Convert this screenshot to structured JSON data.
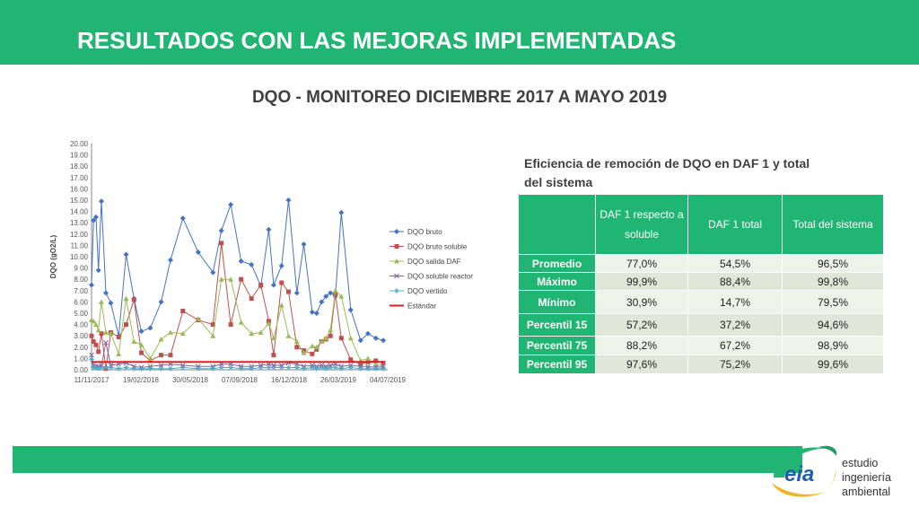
{
  "header": {
    "title": "RESULTADOS CON LAS MEJORAS IMPLEMENTADAS"
  },
  "subtitle": "DQO - MONITOREO DICIEMBRE 2017 A MAYO 2019",
  "colors": {
    "green": "#21b573",
    "dqo_bruto": "#4472c4",
    "dqo_bruto_soluble": "#c0504d",
    "dqo_salida_daf": "#9bbb59",
    "dqo_soluble_reactor": "#8064a2",
    "dqo_vertido": "#4bacc6",
    "estandar": "#e02020"
  },
  "chart_data": {
    "type": "line",
    "ylabel": "DQO (gO2/L)",
    "ylim": [
      0,
      20
    ],
    "yticks": [
      "20.00",
      "19.00",
      "18.00",
      "17.00",
      "16.00",
      "15.00",
      "14.00",
      "13.00",
      "12.00",
      "11.00",
      "10.00",
      "9.00",
      "8.00",
      "7.00",
      "6.00",
      "5.00",
      "4.00",
      "3.00",
      "2.00",
      "1.00",
      "0.00"
    ],
    "xticks": [
      "11/11/2017",
      "19/02/2018",
      "30/05/2018",
      "07/09/2018",
      "16/12/2018",
      "26/03/2019",
      "04/07/2019"
    ],
    "x": [
      "2017-11-11",
      "2017-11-15",
      "2017-11-20",
      "2017-11-25",
      "2017-12-01",
      "2017-12-10",
      "2017-12-20",
      "2018-01-05",
      "2018-01-20",
      "2018-02-05",
      "2018-02-20",
      "2018-03-10",
      "2018-04-01",
      "2018-04-20",
      "2018-05-15",
      "2018-06-15",
      "2018-07-15",
      "2018-08-01",
      "2018-08-20",
      "2018-09-10",
      "2018-10-01",
      "2018-10-20",
      "2018-11-05",
      "2018-11-15",
      "2018-12-01",
      "2018-12-15",
      "2019-01-01",
      "2019-01-15",
      "2019-02-01",
      "2019-02-10",
      "2019-02-20",
      "2019-03-01",
      "2019-03-10",
      "2019-03-20",
      "2019-04-01",
      "2019-04-20",
      "2019-05-10",
      "2019-05-25",
      "2019-06-10",
      "2019-06-25"
    ],
    "series": [
      {
        "name": "DQO bruto",
        "values": [
          7.5,
          13.2,
          13.5,
          8.8,
          14.9,
          6.8,
          5.9,
          3.0,
          10.2,
          6.3,
          3.4,
          3.7,
          6.0,
          9.7,
          13.4,
          10.4,
          8.6,
          12.3,
          14.6,
          9.6,
          9.3,
          7.4,
          12.4,
          7.5,
          9.2,
          15.0,
          6.8,
          11.1,
          5.1,
          5.0,
          6.0,
          6.5,
          6.8,
          6.5,
          13.9,
          5.3,
          2.6,
          3.2,
          2.8,
          2.6
        ]
      },
      {
        "name": "DQO bruto soluble",
        "values": [
          3.0,
          2.5,
          2.2,
          1.6,
          3.2,
          0.1,
          3.3,
          2.9,
          4.0,
          6.2,
          1.5,
          0.8,
          1.3,
          1.3,
          5.2,
          4.4,
          4.0,
          11.2,
          4.0,
          8.0,
          6.3,
          7.5,
          4.3,
          1.3,
          7.7,
          6.9,
          2.0,
          1.7,
          1.4,
          1.8,
          2.5,
          2.7,
          3.0,
          6.7,
          2.8,
          0.9,
          0.5,
          0.7,
          0.8,
          0.6
        ]
      },
      {
        "name": "DQO salida DAF",
        "values": [
          4.4,
          4.3,
          4.0,
          3.5,
          6.0,
          3.3,
          3.2,
          1.4,
          6.3,
          2.5,
          2.2,
          1.0,
          2.7,
          3.3,
          3.2,
          4.5,
          3.0,
          8.0,
          8.0,
          4.2,
          3.2,
          3.3,
          4.1,
          2.8,
          5.7,
          3.0,
          2.5,
          1.5,
          2.1,
          2.0,
          2.5,
          2.8,
          3.5,
          7.0,
          6.5,
          2.8,
          0.8,
          1.0,
          0.5,
          0.3
        ]
      },
      {
        "name": "DQO soluble reactor",
        "values": [
          1.3,
          0.4,
          0.3,
          0.3,
          0.4,
          2.4,
          0.4,
          0.5,
          0.6,
          0.3,
          0.2,
          0.3,
          0.4,
          0.5,
          0.4,
          0.3,
          0.3,
          0.5,
          0.5,
          0.3,
          0.3,
          0.4,
          0.5,
          0.4,
          0.4,
          0.6,
          0.5,
          0.3,
          0.4,
          0.3,
          0.4,
          0.3,
          0.4,
          0.5,
          0.3,
          0.4,
          0.3,
          0.3,
          0.2,
          0.3
        ]
      },
      {
        "name": "DQO vertido",
        "values": [
          0.9,
          0.2,
          0.2,
          0.1,
          0.2,
          0.2,
          0.2,
          0.1,
          0.2,
          0.1,
          0.1,
          0.1,
          0.1,
          0.1,
          0.2,
          0.1,
          0.1,
          0.2,
          0.2,
          0.1,
          0.1,
          0.2,
          0.2,
          0.2,
          0.2,
          0.2,
          0.2,
          0.1,
          0.2,
          0.1,
          0.2,
          0.1,
          0.2,
          0.2,
          0.1,
          0.2,
          0.1,
          0.1,
          0.1,
          0.1
        ]
      },
      {
        "name": "Estándar",
        "values": [
          0.7,
          0.7,
          0.7,
          0.7,
          0.7,
          0.7,
          0.7,
          0.7,
          0.7,
          0.7,
          0.7,
          0.7,
          0.7,
          0.7,
          0.7,
          0.7,
          0.7,
          0.7,
          0.7,
          0.7,
          0.7,
          0.7,
          0.7,
          0.7,
          0.7,
          0.7,
          0.7,
          0.7,
          0.7,
          0.7,
          0.7,
          0.7,
          0.7,
          0.7,
          0.7,
          0.7,
          0.7,
          0.7,
          0.7,
          0.7
        ]
      }
    ],
    "legend": "right"
  },
  "table": {
    "caption": "Eficiencia de remoción de DQO en DAF 1 y total del sistema",
    "headers": [
      "",
      "DAF 1 respecto a soluble",
      "DAF 1 total",
      "Total del sistema"
    ],
    "rows": [
      {
        "label": "Promedio",
        "values": [
          "77,0%",
          "54,5%",
          "96,5%"
        ]
      },
      {
        "label": "Máximo",
        "values": [
          "99,9%",
          "88,4%",
          "99,8%"
        ]
      },
      {
        "label": "Mínimo",
        "values": [
          "30,9%",
          "14,7%",
          "79,5%"
        ]
      },
      {
        "label": "Percentil 15",
        "values": [
          "57,2%",
          "37,2%",
          "94,6%"
        ]
      },
      {
        "label": "Percentil 75",
        "values": [
          "88,2%",
          "67,2%",
          "98,9%"
        ]
      },
      {
        "label": "Percentil 95",
        "values": [
          "97,6%",
          "75,2%",
          "99,6%"
        ]
      }
    ]
  },
  "brand": {
    "logo_text": "eia",
    "line1": "estudio",
    "line2": "ingeniería",
    "line3": "ambiental"
  }
}
